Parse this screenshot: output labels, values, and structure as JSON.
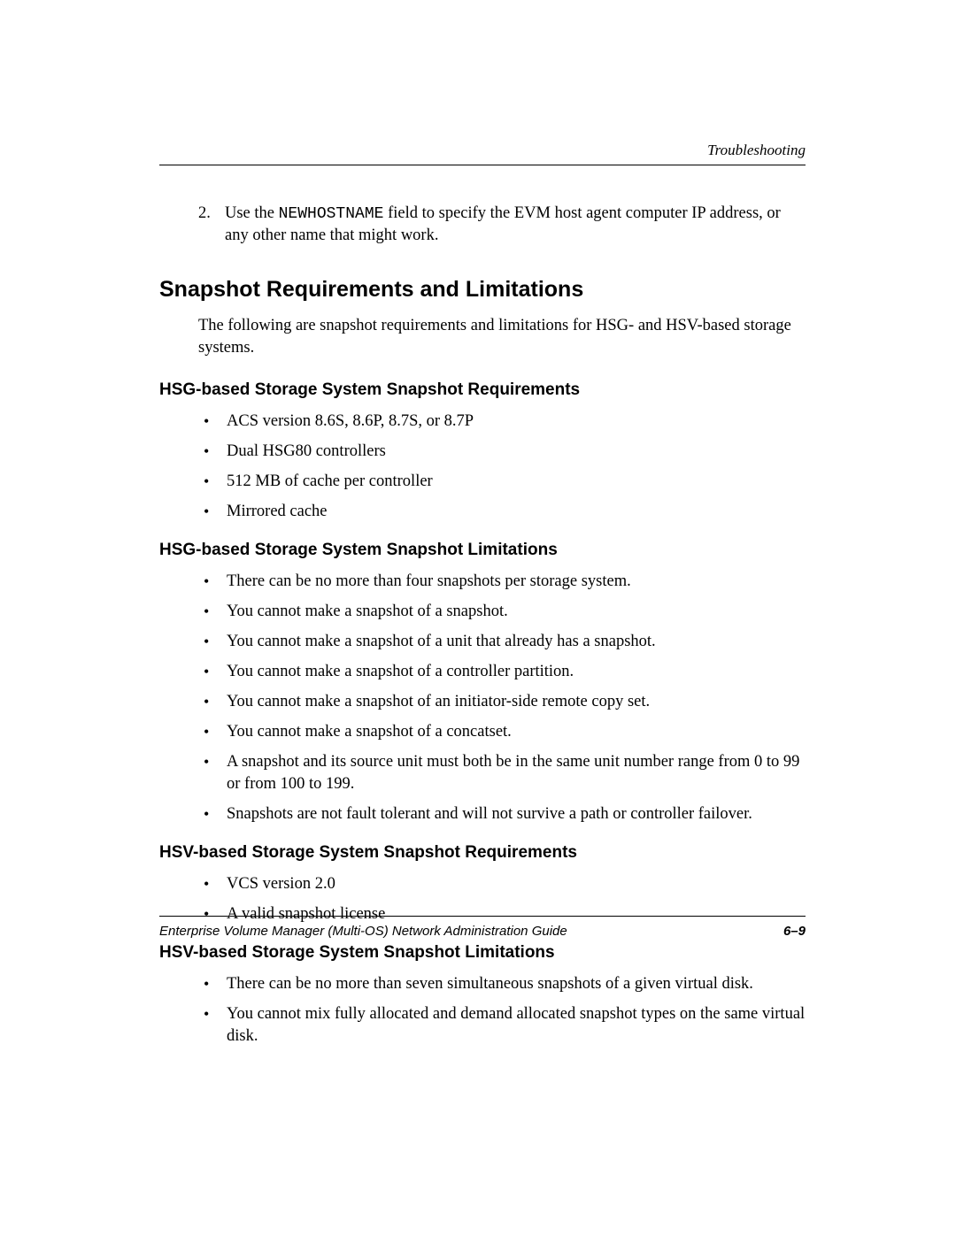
{
  "header": {
    "running": "Troubleshooting"
  },
  "step": {
    "num": "2.",
    "pre": "Use the ",
    "code": "NEWHOSTNAME",
    "post": " field to specify the EVM host agent computer IP address, or any other name that might work."
  },
  "section": {
    "title": "Snapshot Requirements and Limitations",
    "intro": "The following are snapshot requirements and limitations for HSG- and HSV-based storage systems."
  },
  "hsg_req": {
    "title": "HSG-based Storage System Snapshot Requirements",
    "items": [
      "ACS version 8.6S, 8.6P, 8.7S, or 8.7P",
      "Dual HSG80 controllers",
      "512 MB of cache per controller",
      "Mirrored cache"
    ]
  },
  "hsg_lim": {
    "title": "HSG-based Storage System Snapshot Limitations",
    "items": [
      "There can be no more than four snapshots per storage system.",
      "You cannot make a snapshot of a snapshot.",
      "You cannot make a snapshot of a unit that already has a snapshot.",
      "You cannot make a snapshot of a controller partition.",
      "You cannot make a snapshot of an initiator-side remote copy set.",
      "You cannot make a snapshot of a concatset.",
      "A snapshot and its source unit must both be in the same unit number range from 0 to 99 or from 100 to 199.",
      "Snapshots are not fault tolerant and will not survive a path or controller failover."
    ]
  },
  "hsv_req": {
    "title": "HSV-based Storage System Snapshot Requirements",
    "items": [
      "VCS version 2.0",
      "A valid snapshot license"
    ]
  },
  "hsv_lim": {
    "title": "HSV-based Storage System Snapshot Limitations",
    "items": [
      "There can be no more than seven simultaneous snapshots of a given virtual disk.",
      "You cannot mix fully allocated and demand allocated snapshot types on the same virtual disk."
    ]
  },
  "footer": {
    "left": "Enterprise Volume Manager (Multi-OS) Network Administration Guide",
    "right": "6–9"
  }
}
